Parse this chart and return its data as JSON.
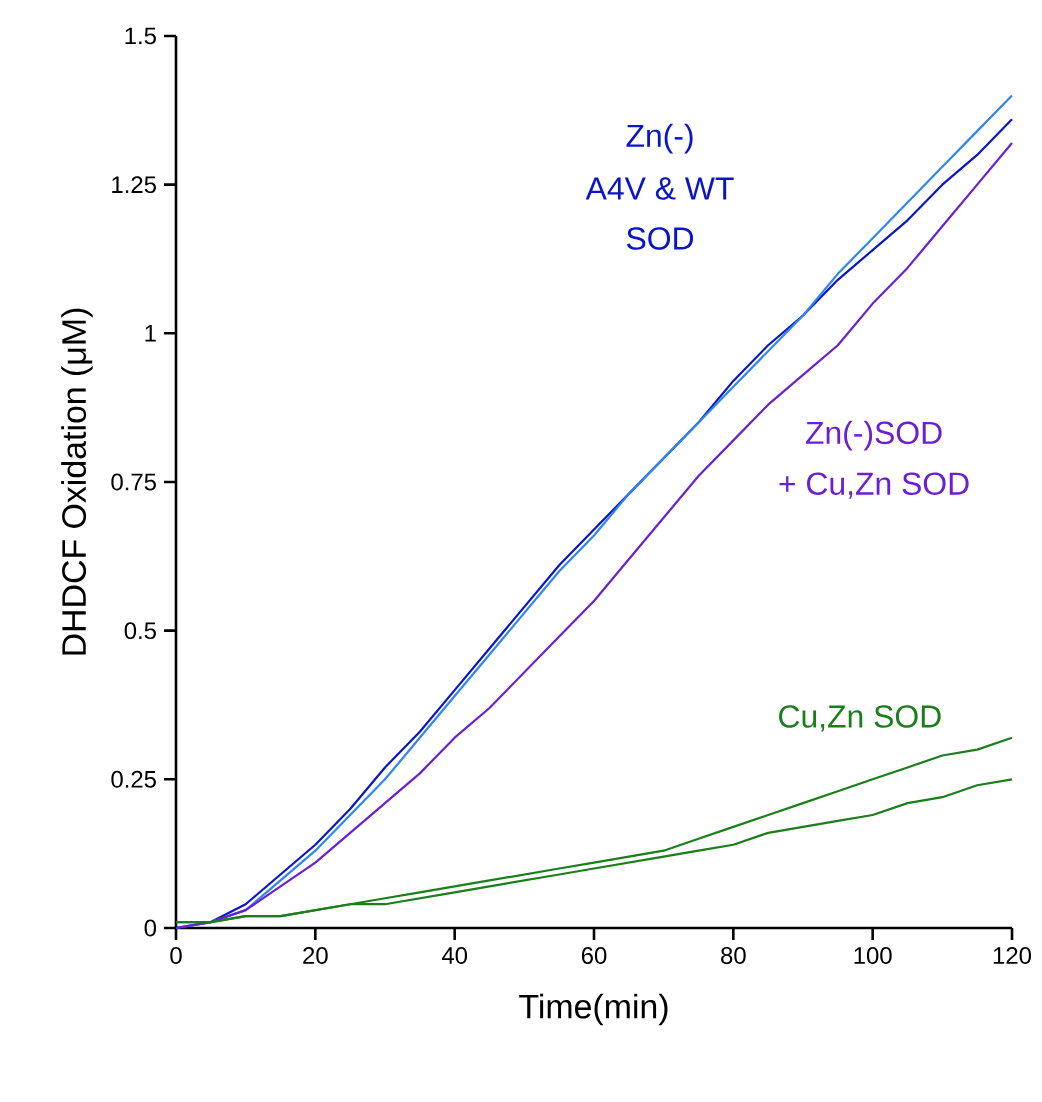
{
  "chart_data": {
    "type": "line",
    "xlabel": "Time(min)",
    "ylabel": "DHDCF Oxidation (μM)",
    "x": [
      0,
      5,
      10,
      15,
      20,
      25,
      30,
      35,
      40,
      45,
      50,
      55,
      60,
      65,
      70,
      75,
      80,
      85,
      90,
      95,
      100,
      105,
      110,
      115,
      120
    ],
    "xlim": [
      0,
      120
    ],
    "xticks": [
      0,
      20,
      40,
      60,
      80,
      100,
      120
    ],
    "ylim": [
      0,
      1.5
    ],
    "yticks": [
      0,
      0.25,
      0.5,
      0.75,
      1,
      1.25,
      1.5
    ],
    "series": [
      {
        "color": "#0a14c8",
        "values": [
          0,
          0.01,
          0.04,
          0.09,
          0.14,
          0.2,
          0.27,
          0.33,
          0.4,
          0.47,
          0.54,
          0.61,
          0.67,
          0.73,
          0.79,
          0.85,
          0.92,
          0.98,
          1.03,
          1.09,
          1.14,
          1.19,
          1.25,
          1.3,
          1.36
        ]
      },
      {
        "color": "#2f86f0",
        "values": [
          0,
          0.01,
          0.03,
          0.08,
          0.13,
          0.19,
          0.25,
          0.32,
          0.39,
          0.46,
          0.53,
          0.6,
          0.66,
          0.73,
          0.79,
          0.85,
          0.91,
          0.97,
          1.03,
          1.1,
          1.16,
          1.22,
          1.28,
          1.34,
          1.4
        ]
      },
      {
        "color": "#6a1fd6",
        "values": [
          0,
          0.01,
          0.03,
          0.07,
          0.11,
          0.16,
          0.21,
          0.26,
          0.32,
          0.37,
          0.43,
          0.49,
          0.55,
          0.62,
          0.69,
          0.76,
          0.82,
          0.88,
          0.93,
          0.98,
          1.05,
          1.11,
          1.18,
          1.25,
          1.32
        ]
      },
      {
        "color": "#1a7f1a",
        "values": [
          0.01,
          0.01,
          0.02,
          0.02,
          0.03,
          0.04,
          0.05,
          0.06,
          0.07,
          0.08,
          0.09,
          0.1,
          0.11,
          0.12,
          0.13,
          0.15,
          0.17,
          0.19,
          0.21,
          0.23,
          0.25,
          0.27,
          0.29,
          0.3,
          0.32
        ]
      },
      {
        "color": "#1a7f1a",
        "values": [
          0.01,
          0.01,
          0.02,
          0.02,
          0.03,
          0.04,
          0.04,
          0.05,
          0.06,
          0.07,
          0.08,
          0.09,
          0.1,
          0.11,
          0.12,
          0.13,
          0.14,
          0.16,
          0.17,
          0.18,
          0.19,
          0.21,
          0.22,
          0.24,
          0.25
        ]
      }
    ],
    "annotations": [
      "Zn(-)",
      "A4V & WT",
      "SOD",
      "Zn(-)SOD",
      "+ Cu,Zn SOD",
      "Cu,Zn SOD"
    ]
  }
}
